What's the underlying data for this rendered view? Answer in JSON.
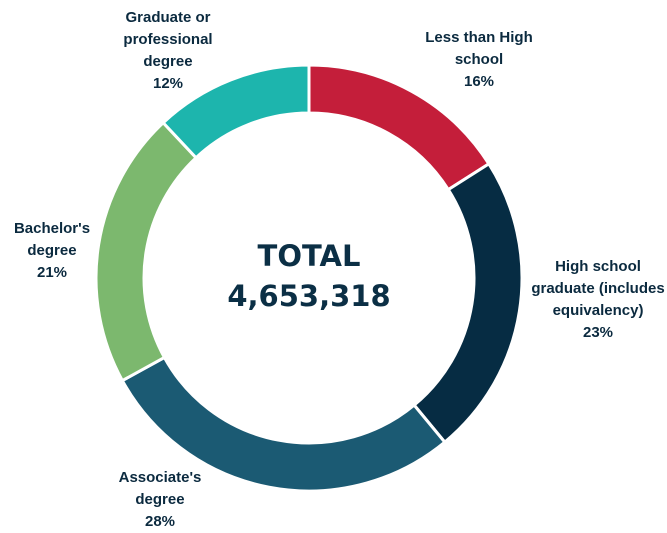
{
  "chart_data": {
    "type": "donut",
    "categories": [
      "Less than High school",
      "High school graduate (includes equivalency)",
      "Associate's degree",
      "Bachelor's degree",
      "Graduate or professional degree"
    ],
    "values": [
      16,
      23,
      28,
      21,
      12
    ],
    "value_labels": [
      "16%",
      "23%",
      "28%",
      "21%",
      "12%"
    ],
    "colors": [
      "#c41e3a",
      "#062c43",
      "#1b5a73",
      "#7cb86e",
      "#1db5ad"
    ],
    "center_title": "TOTAL",
    "total": {
      "value": 4653318,
      "label": "4,653,318"
    }
  }
}
